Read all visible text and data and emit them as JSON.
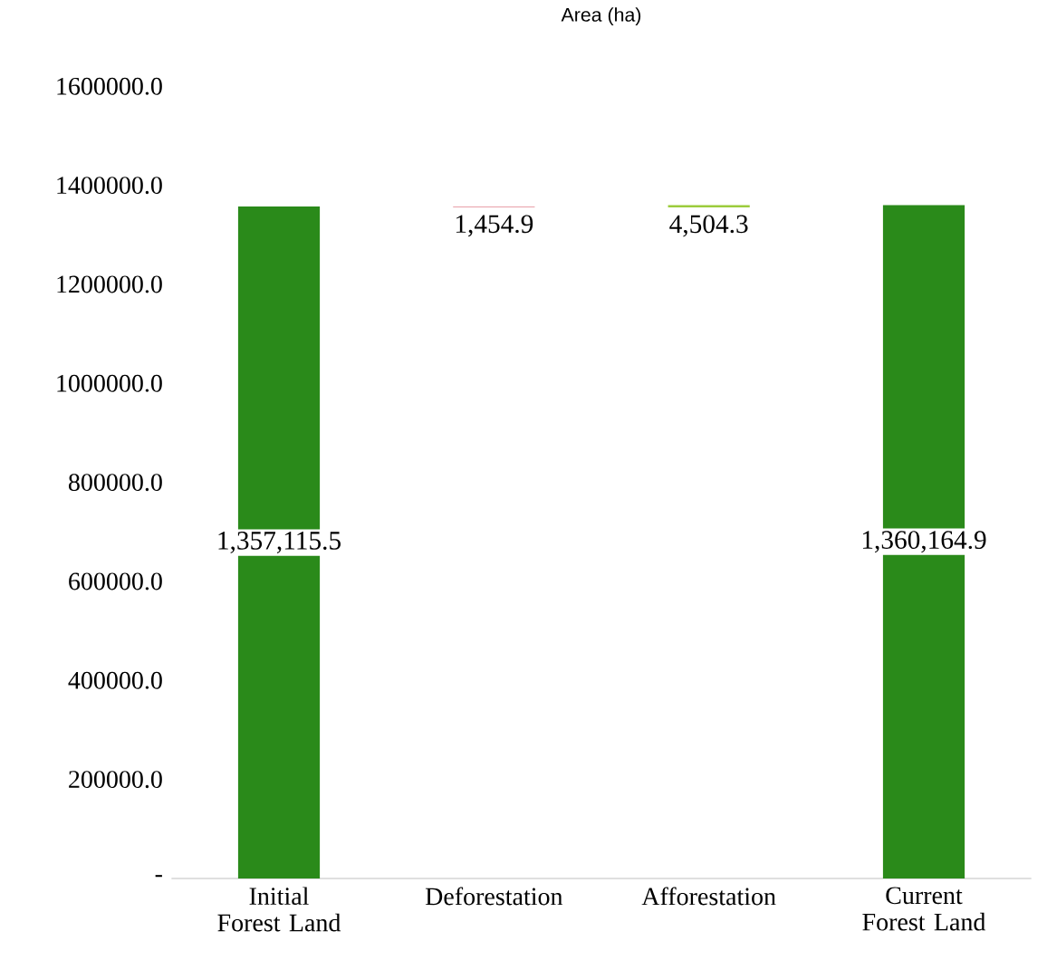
{
  "chart_data": {
    "type": "bar",
    "title": "Area (ha)",
    "categories": [
      "Initial Forest Land",
      "Deforestation",
      "Afforestation",
      "Current Forest Land"
    ],
    "values": [
      1357115.5,
      1454.9,
      4504.3,
      1360164.9
    ],
    "base": [
      0,
      1355660.6,
      1355660.6,
      0
    ],
    "colors": [
      "#2a8a1a",
      "#e8a0a8",
      "#9ccc3c",
      "#2a8a1a"
    ],
    "value_labels": [
      "1,357,115.5",
      "1,454.9",
      "4,504.3",
      "1,360,164.9"
    ],
    "ylim": [
      0,
      1600000
    ],
    "yticks": [
      {
        "value": 0,
        "label": "-"
      },
      {
        "value": 200000,
        "label": "200000.0"
      },
      {
        "value": 400000,
        "label": "400000.0"
      },
      {
        "value": 600000,
        "label": "600000.0"
      },
      {
        "value": 800000,
        "label": "800000.0"
      },
      {
        "value": 1000000,
        "label": "1000000.0"
      },
      {
        "value": 1200000,
        "label": "1200000.0"
      },
      {
        "value": 1400000,
        "label": "1400000.0"
      },
      {
        "value": 1600000,
        "label": "1600000.0"
      }
    ],
    "grid": false
  }
}
